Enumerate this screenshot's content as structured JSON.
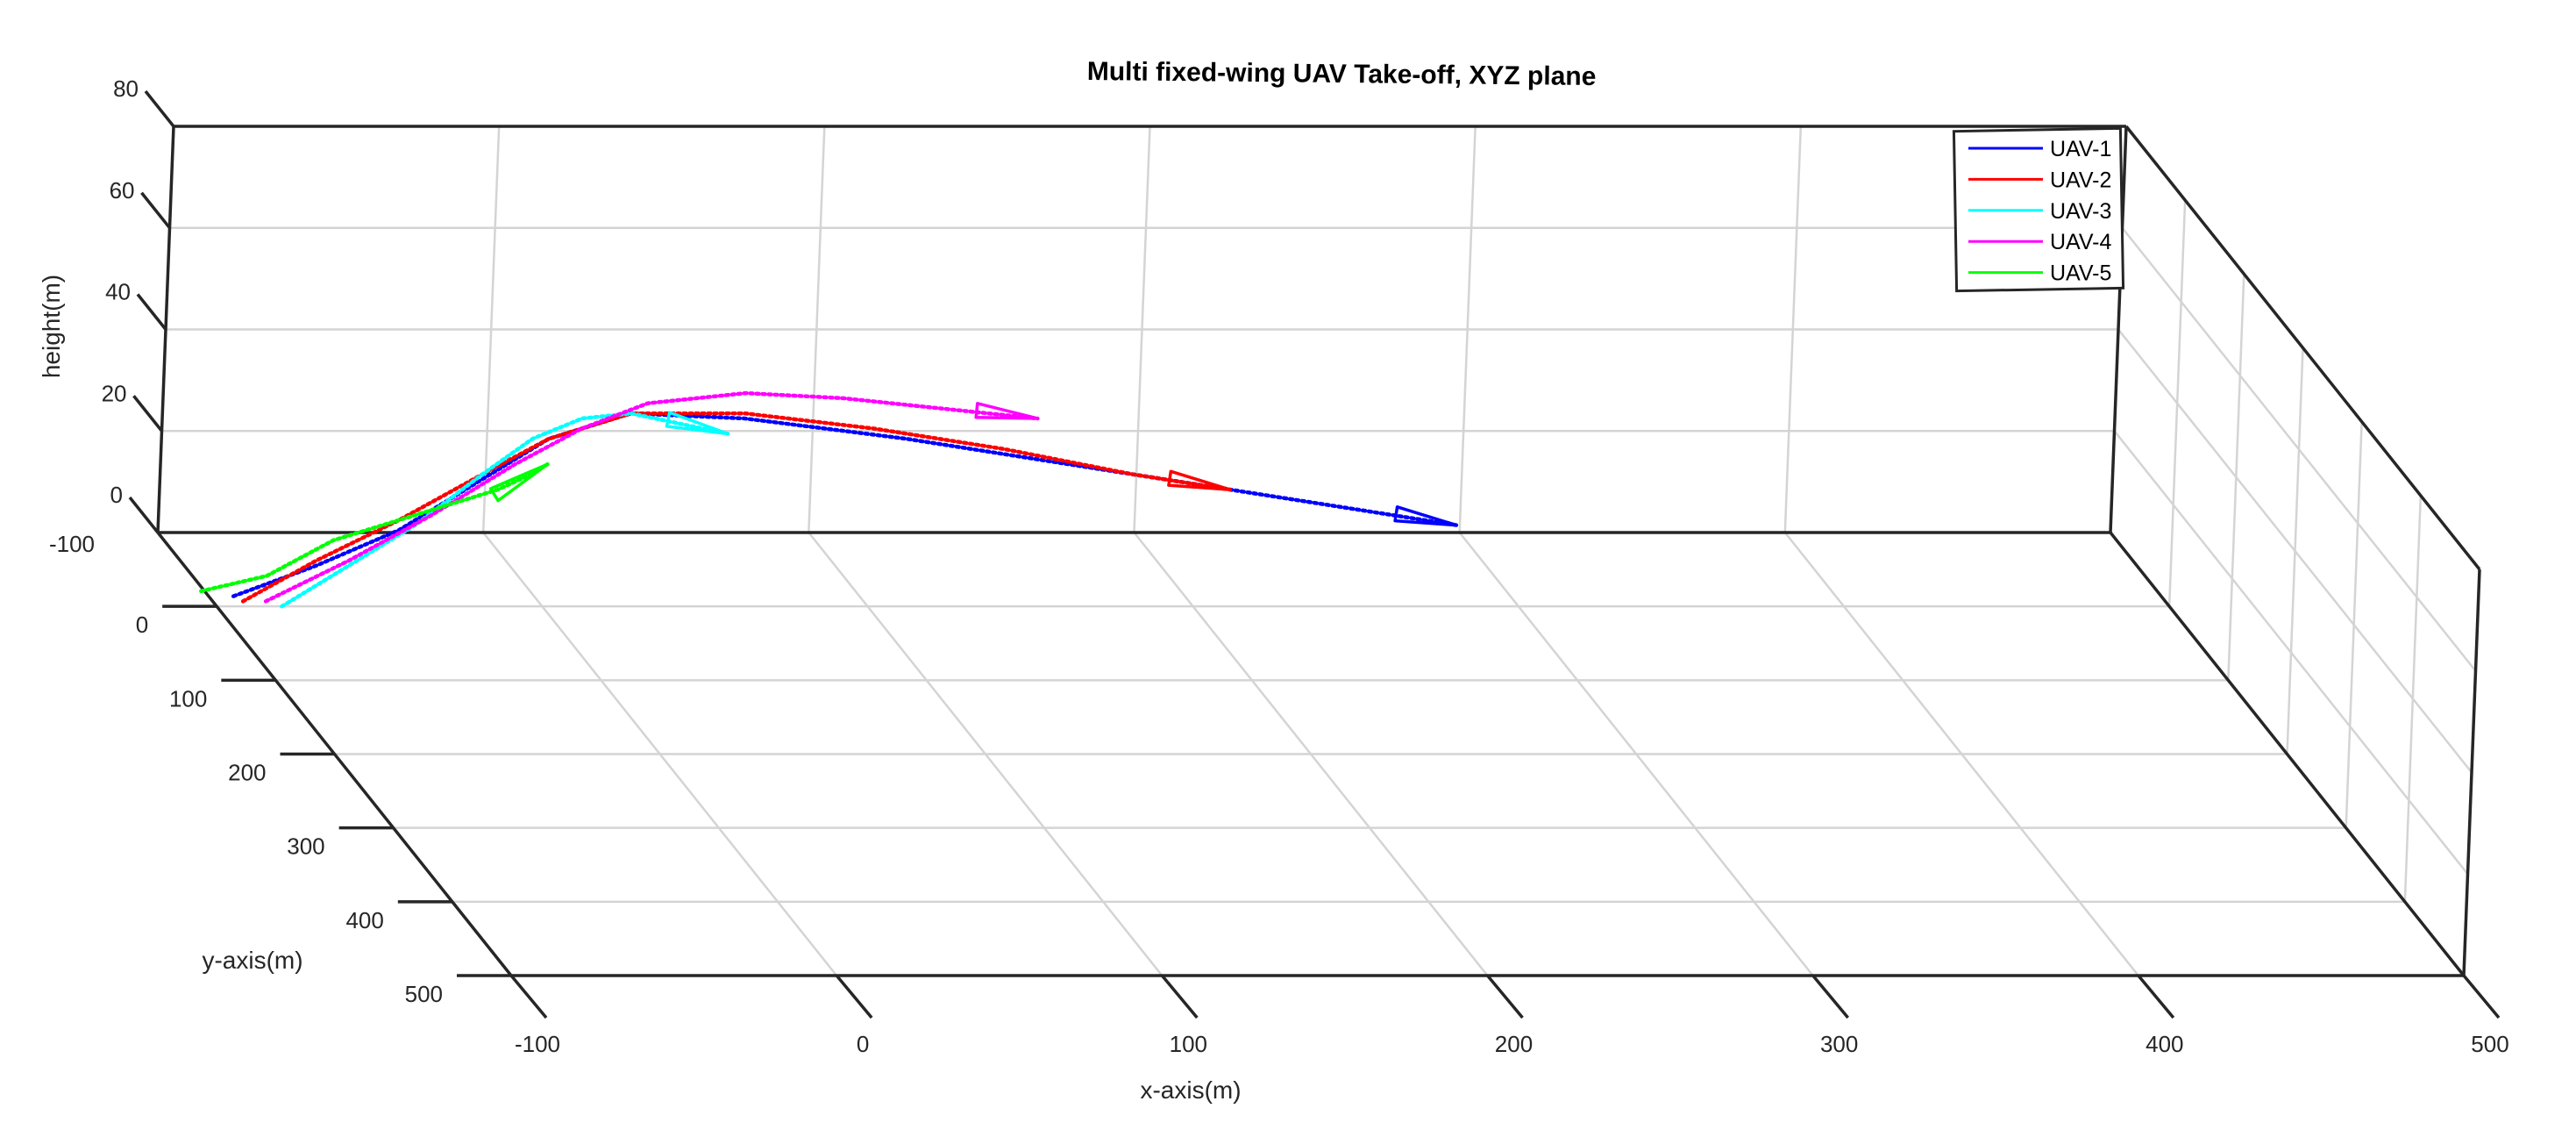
{
  "chart_data": {
    "type": "line",
    "title": "Multi fixed-wing UAV Take-off, XYZ plane",
    "xlabel": "x-axis(m)",
    "ylabel": "y-axis(m)",
    "zlabel": "height(m)",
    "xlim": [
      -100,
      500
    ],
    "ylim": [
      -100,
      500
    ],
    "zlim": [
      0,
      80
    ],
    "x_ticks": [
      "-100",
      "0",
      "100",
      "200",
      "300",
      "400",
      "500"
    ],
    "y_ticks": [
      "-100",
      "0",
      "100",
      "200",
      "300",
      "400",
      "500"
    ],
    "z_ticks": [
      "0",
      "20",
      "40",
      "60",
      "80"
    ],
    "grid": true,
    "legend_position": "top-right",
    "line_style": "dotted",
    "series": [
      {
        "name": "UAV-1",
        "color": "#0000ff",
        "x": [
          -95,
          -70,
          -45,
          -20,
          0,
          25,
          60,
          110,
          160,
          210,
          250,
          280
        ],
        "y": [
          0,
          0,
          0,
          0,
          0,
          0,
          0,
          0,
          0,
          0,
          0,
          0
        ],
        "z": [
          2,
          8,
          15,
          25,
          33,
          38,
          37,
          33,
          28,
          23,
          19,
          16
        ]
      },
      {
        "name": "UAV-2",
        "color": "#ff0000",
        "x": [
          -92,
          -70,
          -45,
          -20,
          0,
          25,
          60,
          100,
          140,
          180,
          210
        ],
        "y": [
          0,
          0,
          0,
          0,
          0,
          0,
          0,
          0,
          0,
          0,
          0
        ],
        "z": [
          1,
          9,
          17,
          26,
          33,
          38,
          38,
          35,
          31,
          26,
          23
        ]
      },
      {
        "name": "UAV-3",
        "color": "#00ffff",
        "x": [
          -80,
          -60,
          -40,
          -20,
          -5,
          10,
          25,
          40,
          55
        ],
        "y": [
          0,
          0,
          0,
          0,
          0,
          0,
          0,
          0,
          0
        ],
        "z": [
          0,
          8,
          16,
          26,
          33,
          37,
          38,
          36,
          34
        ]
      },
      {
        "name": "UAV-4",
        "color": "#ff00ff",
        "x": [
          -85,
          -60,
          -35,
          -10,
          10,
          30,
          60,
          90,
          120,
          150
        ],
        "y": [
          0,
          0,
          0,
          0,
          0,
          0,
          0,
          0,
          0,
          0
        ],
        "z": [
          1,
          9,
          18,
          28,
          35,
          40,
          42,
          41,
          39,
          37
        ]
      },
      {
        "name": "UAV-5",
        "color": "#00ff00",
        "x": [
          -105,
          -85,
          -65,
          -45,
          -30,
          -15,
          -5,
          0
        ],
        "y": [
          0,
          0,
          0,
          0,
          0,
          0,
          0,
          0
        ],
        "z": [
          3,
          6,
          13,
          17,
          20,
          23,
          26,
          28
        ]
      }
    ]
  }
}
